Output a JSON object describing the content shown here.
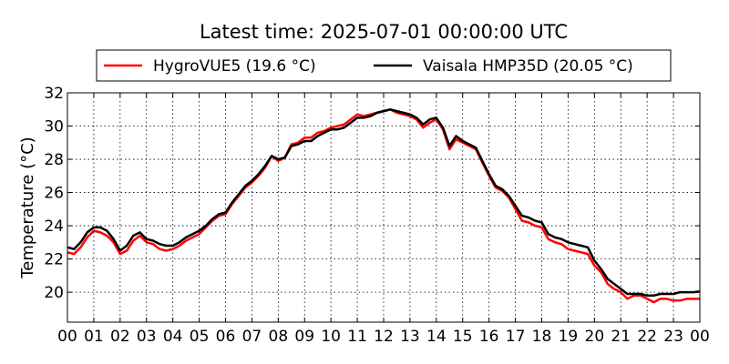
{
  "chart_data": {
    "type": "line",
    "title": "Latest time: 2025-07-01 00:00:00 UTC",
    "ylabel": "Temperature (°C)",
    "xlabel": "",
    "xlim": [
      0,
      24
    ],
    "ylim": [
      18.2,
      32.0
    ],
    "x_tick_labels": [
      "00",
      "01",
      "02",
      "03",
      "04",
      "05",
      "06",
      "07",
      "08",
      "09",
      "10",
      "11",
      "12",
      "13",
      "14",
      "15",
      "16",
      "17",
      "18",
      "19",
      "20",
      "21",
      "22",
      "23",
      "00"
    ],
    "y_ticks": [
      20,
      22,
      24,
      26,
      28,
      30,
      32
    ],
    "grid": true,
    "legend_position": "top",
    "series": [
      {
        "name": "HygroVUE5 (19.6 °C)",
        "color": "#ff0000",
        "x": [
          0,
          0.25,
          0.5,
          0.75,
          1,
          1.25,
          1.5,
          1.75,
          2,
          2.25,
          2.5,
          2.75,
          3,
          3.25,
          3.5,
          3.75,
          4,
          4.25,
          4.5,
          4.75,
          5,
          5.25,
          5.5,
          5.75,
          6,
          6.25,
          6.5,
          6.75,
          7,
          7.25,
          7.5,
          7.75,
          8,
          8.25,
          8.5,
          8.75,
          9,
          9.25,
          9.5,
          9.75,
          10,
          10.25,
          10.5,
          10.75,
          11,
          11.25,
          11.5,
          11.75,
          12,
          12.25,
          12.5,
          12.75,
          13,
          13.25,
          13.5,
          13.75,
          14,
          14.25,
          14.5,
          14.75,
          15,
          15.25,
          15.5,
          15.75,
          16,
          16.25,
          16.5,
          16.75,
          17,
          17.25,
          17.5,
          17.75,
          18,
          18.25,
          18.5,
          18.75,
          19,
          19.25,
          19.5,
          19.75,
          20,
          20.25,
          20.5,
          20.75,
          21,
          21.25,
          21.5,
          21.75,
          22,
          22.25,
          22.5,
          22.75,
          23,
          23.25,
          23.5,
          23.75,
          24
        ],
        "values": [
          22.4,
          22.3,
          22.7,
          23.3,
          23.7,
          23.6,
          23.4,
          23.0,
          22.3,
          22.5,
          23.1,
          23.4,
          23.0,
          22.9,
          22.6,
          22.5,
          22.6,
          22.8,
          23.1,
          23.3,
          23.5,
          23.9,
          24.3,
          24.6,
          24.7,
          25.3,
          25.8,
          26.3,
          26.6,
          27.0,
          27.5,
          28.2,
          27.9,
          28.1,
          28.9,
          29.0,
          29.3,
          29.3,
          29.6,
          29.7,
          29.9,
          30.0,
          30.1,
          30.4,
          30.7,
          30.6,
          30.7,
          30.8,
          30.9,
          31.0,
          30.8,
          30.7,
          30.6,
          30.4,
          29.9,
          30.2,
          30.4,
          29.8,
          28.6,
          29.2,
          29.0,
          28.8,
          28.6,
          27.8,
          27.0,
          26.3,
          26.1,
          25.7,
          25.0,
          24.3,
          24.2,
          24.0,
          23.9,
          23.2,
          23.0,
          22.9,
          22.6,
          22.5,
          22.4,
          22.3,
          21.6,
          21.2,
          20.5,
          20.2,
          20.0,
          19.6,
          19.8,
          19.8,
          19.6,
          19.4,
          19.6,
          19.6,
          19.5,
          19.5,
          19.6,
          19.6,
          19.6
        ]
      },
      {
        "name": "Vaisala HMP35D (20.05 °C)",
        "color": "#000000",
        "x": [
          0,
          0.25,
          0.5,
          0.75,
          1,
          1.25,
          1.5,
          1.75,
          2,
          2.25,
          2.5,
          2.75,
          3,
          3.25,
          3.5,
          3.75,
          4,
          4.25,
          4.5,
          4.75,
          5,
          5.25,
          5.5,
          5.75,
          6,
          6.25,
          6.5,
          6.75,
          7,
          7.25,
          7.5,
          7.75,
          8,
          8.25,
          8.5,
          8.75,
          9,
          9.25,
          9.5,
          9.75,
          10,
          10.25,
          10.5,
          10.75,
          11,
          11.25,
          11.5,
          11.75,
          12,
          12.25,
          12.5,
          12.75,
          13,
          13.25,
          13.5,
          13.75,
          14,
          14.25,
          14.5,
          14.75,
          15,
          15.25,
          15.5,
          15.75,
          16,
          16.25,
          16.5,
          16.75,
          17,
          17.25,
          17.5,
          17.75,
          18,
          18.25,
          18.5,
          18.75,
          19,
          19.25,
          19.5,
          19.75,
          20,
          20.25,
          20.5,
          20.75,
          21,
          21.25,
          21.5,
          21.75,
          22,
          22.25,
          22.5,
          22.75,
          23,
          23.25,
          23.5,
          23.75,
          24
        ],
        "values": [
          22.7,
          22.6,
          23.0,
          23.6,
          23.9,
          23.9,
          23.7,
          23.2,
          22.5,
          22.8,
          23.4,
          23.6,
          23.2,
          23.1,
          22.9,
          22.8,
          22.8,
          23.0,
          23.3,
          23.5,
          23.7,
          24.0,
          24.4,
          24.7,
          24.8,
          25.4,
          25.9,
          26.4,
          26.7,
          27.1,
          27.6,
          28.2,
          28.0,
          28.1,
          28.8,
          28.9,
          29.1,
          29.1,
          29.4,
          29.6,
          29.8,
          29.8,
          29.9,
          30.2,
          30.5,
          30.5,
          30.6,
          30.8,
          30.9,
          31.0,
          30.9,
          30.8,
          30.7,
          30.5,
          30.1,
          30.4,
          30.5,
          29.9,
          28.8,
          29.4,
          29.1,
          28.9,
          28.7,
          27.9,
          27.1,
          26.4,
          26.2,
          25.8,
          25.2,
          24.6,
          24.5,
          24.3,
          24.2,
          23.5,
          23.3,
          23.2,
          23.0,
          22.9,
          22.8,
          22.7,
          21.9,
          21.4,
          20.8,
          20.5,
          20.2,
          19.9,
          19.9,
          19.9,
          19.8,
          19.8,
          19.9,
          19.9,
          19.9,
          20.0,
          20.0,
          20.0,
          20.05
        ]
      }
    ]
  }
}
